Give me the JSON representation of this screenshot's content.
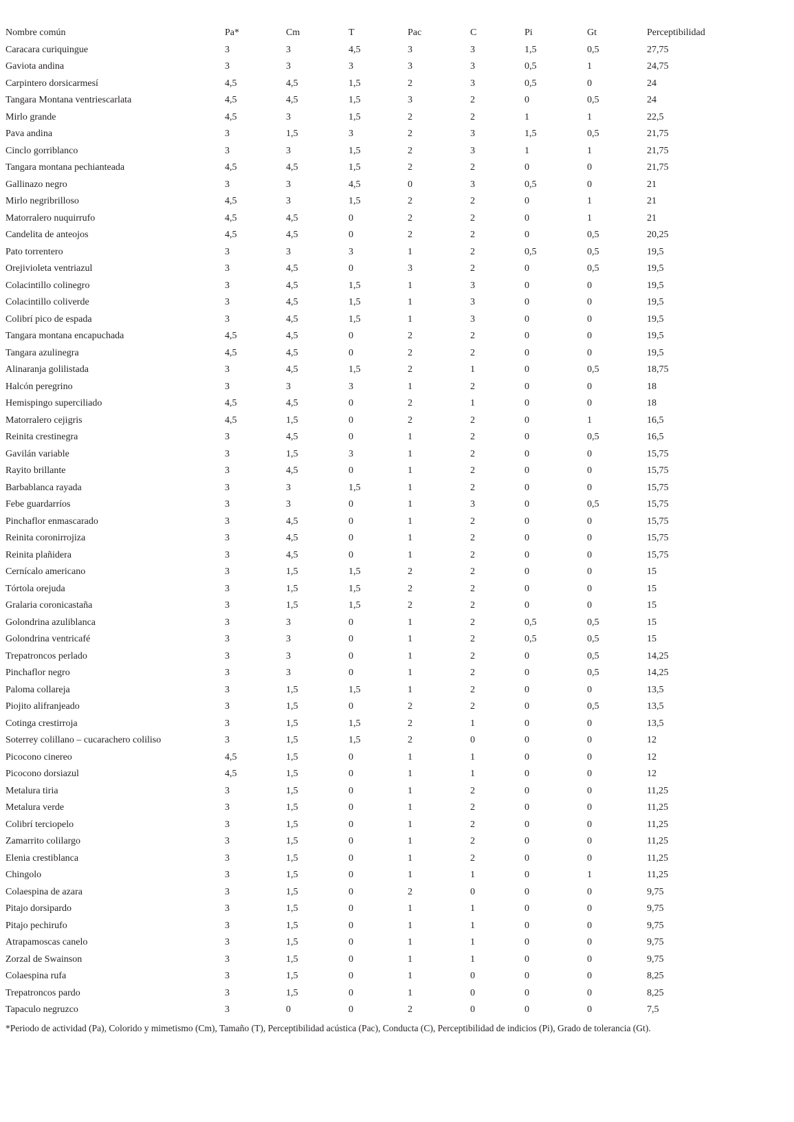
{
  "table": {
    "columns": [
      "Nombre común",
      "Pa*",
      "Cm",
      "T",
      "Pac",
      "C",
      "Pi",
      "Gt",
      "Perceptibilidad"
    ],
    "rows": [
      [
        "Caracara curiquingue",
        "3",
        "3",
        "4,5",
        "3",
        "3",
        "1,5",
        "0,5",
        "27,75"
      ],
      [
        "Gaviota andina",
        "3",
        "3",
        "3",
        "3",
        "3",
        "0,5",
        "1",
        "24,75"
      ],
      [
        "Carpintero dorsicarmesí",
        "4,5",
        "4,5",
        "1,5",
        "2",
        "3",
        "0,5",
        "0",
        "24"
      ],
      [
        "Tangara Montana ventriescarlata",
        "4,5",
        "4,5",
        "1,5",
        "3",
        "2",
        "0",
        "0,5",
        "24"
      ],
      [
        "Mirlo grande",
        "4,5",
        "3",
        "1,5",
        "2",
        "2",
        "1",
        "1",
        "22,5"
      ],
      [
        "Pava andina",
        "3",
        "1,5",
        "3",
        "2",
        "3",
        "1,5",
        "0,5",
        "21,75"
      ],
      [
        "Cinclo gorriblanco",
        "3",
        "3",
        "1,5",
        "2",
        "3",
        "1",
        "1",
        "21,75"
      ],
      [
        "Tangara montana pechianteada",
        "4,5",
        "4,5",
        "1,5",
        "2",
        "2",
        "0",
        "0",
        "21,75"
      ],
      [
        "Gallinazo negro",
        "3",
        "3",
        "4,5",
        "0",
        "3",
        "0,5",
        "0",
        "21"
      ],
      [
        "Mirlo negribrilloso",
        "4,5",
        "3",
        "1,5",
        "2",
        "2",
        "0",
        "1",
        "21"
      ],
      [
        "Matorralero nuquirrufo",
        "4,5",
        "4,5",
        "0",
        "2",
        "2",
        "0",
        "1",
        "21"
      ],
      [
        "Candelita de anteojos",
        "4,5",
        "4,5",
        "0",
        "2",
        "2",
        "0",
        "0,5",
        "20,25"
      ],
      [
        "Pato torrentero",
        "3",
        "3",
        "3",
        "1",
        "2",
        "0,5",
        "0,5",
        "19,5"
      ],
      [
        "Orejivioleta ventriazul",
        "3",
        "4,5",
        "0",
        "3",
        "2",
        "0",
        "0,5",
        "19,5"
      ],
      [
        "Colacintillo colinegro",
        "3",
        "4,5",
        "1,5",
        "1",
        "3",
        "0",
        "0",
        "19,5"
      ],
      [
        "Colacintillo coliverde",
        "3",
        "4,5",
        "1,5",
        "1",
        "3",
        "0",
        "0",
        "19,5"
      ],
      [
        "Colibrí pico de espada",
        "3",
        "4,5",
        "1,5",
        "1",
        "3",
        "0",
        "0",
        "19,5"
      ],
      [
        "Tangara montana encapuchada",
        "4,5",
        "4,5",
        "0",
        "2",
        "2",
        "0",
        "0",
        "19,5"
      ],
      [
        "Tangara azulinegra",
        "4,5",
        "4,5",
        "0",
        "2",
        "2",
        "0",
        "0",
        "19,5"
      ],
      [
        "Alinaranja golilistada",
        "3",
        "4,5",
        "1,5",
        "2",
        "1",
        "0",
        "0,5",
        "18,75"
      ],
      [
        "Halcón peregrino",
        "3",
        "3",
        "3",
        "1",
        "2",
        "0",
        "0",
        "18"
      ],
      [
        "Hemispingo superciliado",
        "4,5",
        "4,5",
        "0",
        "2",
        "1",
        "0",
        "0",
        "18"
      ],
      [
        "Matorralero cejigris",
        "4,5",
        "1,5",
        "0",
        "2",
        "2",
        "0",
        "1",
        "16,5"
      ],
      [
        "Reinita crestinegra",
        "3",
        "4,5",
        "0",
        "1",
        "2",
        "0",
        "0,5",
        "16,5"
      ],
      [
        "Gavilán variable",
        "3",
        "1,5",
        "3",
        "1",
        "2",
        "0",
        "0",
        "15,75"
      ],
      [
        "Rayito brillante",
        "3",
        "4,5",
        "0",
        "1",
        "2",
        "0",
        "0",
        "15,75"
      ],
      [
        "Barbablanca rayada",
        "3",
        "3",
        "1,5",
        "1",
        "2",
        "0",
        "0",
        "15,75"
      ],
      [
        "Febe guardarríos",
        "3",
        "3",
        "0",
        "1",
        "3",
        "0",
        "0,5",
        "15,75"
      ],
      [
        "Pinchaflor enmascarado",
        "3",
        "4,5",
        "0",
        "1",
        "2",
        "0",
        "0",
        "15,75"
      ],
      [
        "Reinita coronirrojiza",
        "3",
        "4,5",
        "0",
        "1",
        "2",
        "0",
        "0",
        "15,75"
      ],
      [
        "Reinita plañidera",
        "3",
        "4,5",
        "0",
        "1",
        "2",
        "0",
        "0",
        "15,75"
      ],
      [
        "Cernícalo americano",
        "3",
        "1,5",
        "1,5",
        "2",
        "2",
        "0",
        "0",
        "15"
      ],
      [
        "Tórtola orejuda",
        "3",
        "1,5",
        "1,5",
        "2",
        "2",
        "0",
        "0",
        "15"
      ],
      [
        "Gralaria coronicastaña",
        "3",
        "1,5",
        "1,5",
        "2",
        "2",
        "0",
        "0",
        "15"
      ],
      [
        "Golondrina azuliblanca",
        "3",
        "3",
        "0",
        "1",
        "2",
        "0,5",
        "0,5",
        "15"
      ],
      [
        "Golondrina ventricafé",
        "3",
        "3",
        "0",
        "1",
        "2",
        "0,5",
        "0,5",
        "15"
      ],
      [
        "Trepatroncos perlado",
        "3",
        "3",
        "0",
        "1",
        "2",
        "0",
        "0,5",
        "14,25"
      ],
      [
        "Pinchaflor negro",
        "3",
        "3",
        "0",
        "1",
        "2",
        "0",
        "0,5",
        "14,25"
      ],
      [
        "Paloma collareja",
        "3",
        "1,5",
        "1,5",
        "1",
        "2",
        "0",
        "0",
        "13,5"
      ],
      [
        "Piojito alifranjeado",
        "3",
        "1,5",
        "0",
        "2",
        "2",
        "0",
        "0,5",
        "13,5"
      ],
      [
        "Cotinga crestirroja",
        "3",
        "1,5",
        "1,5",
        "2",
        "1",
        "0",
        "0",
        "13,5"
      ],
      [
        "Soterrey colillano – cucarachero coliliso",
        "3",
        "1,5",
        "1,5",
        "2",
        "0",
        "0",
        "0",
        "12"
      ],
      [
        "Picocono cinereo",
        "4,5",
        "1,5",
        "0",
        "1",
        "1",
        "0",
        "0",
        "12"
      ],
      [
        "Picocono dorsiazul",
        "4,5",
        "1,5",
        "0",
        "1",
        "1",
        "0",
        "0",
        "12"
      ],
      [
        "Metalura tiria",
        "3",
        "1,5",
        "0",
        "1",
        "2",
        "0",
        "0",
        "11,25"
      ],
      [
        "Metalura verde",
        "3",
        "1,5",
        "0",
        "1",
        "2",
        "0",
        "0",
        "11,25"
      ],
      [
        "Colibrí terciopelo",
        "3",
        "1,5",
        "0",
        "1",
        "2",
        "0",
        "0",
        "11,25"
      ],
      [
        "Zamarrito colilargo",
        "3",
        "1,5",
        "0",
        "1",
        "2",
        "0",
        "0",
        "11,25"
      ],
      [
        "Elenia crestiblanca",
        "3",
        "1,5",
        "0",
        "1",
        "2",
        "0",
        "0",
        "11,25"
      ],
      [
        "Chingolo",
        "3",
        "1,5",
        "0",
        "1",
        "1",
        "0",
        "1",
        "11,25"
      ],
      [
        "Colaespina de azara",
        "3",
        "1,5",
        "0",
        "2",
        "0",
        "0",
        "0",
        "9,75"
      ],
      [
        "Pitajo dorsipardo",
        "3",
        "1,5",
        "0",
        "1",
        "1",
        "0",
        "0",
        "9,75"
      ],
      [
        "Pitajo pechirufo",
        "3",
        "1,5",
        "0",
        "1",
        "1",
        "0",
        "0",
        "9,75"
      ],
      [
        "Atrapamoscas canelo",
        "3",
        "1,5",
        "0",
        "1",
        "1",
        "0",
        "0",
        "9,75"
      ],
      [
        "Zorzal de Swainson",
        "3",
        "1,5",
        "0",
        "1",
        "1",
        "0",
        "0",
        "9,75"
      ],
      [
        "Colaespina rufa",
        "3",
        "1,5",
        "0",
        "1",
        "0",
        "0",
        "0",
        "8,25"
      ],
      [
        "Trepatroncos pardo",
        "3",
        "1,5",
        "0",
        "1",
        "0",
        "0",
        "0",
        "8,25"
      ],
      [
        "Tapaculo negruzco",
        "3",
        "0",
        "0",
        "2",
        "0",
        "0",
        "0",
        "7,5"
      ]
    ],
    "footnote": "*Periodo de actividad (Pa), Colorido y mimetismo (Cm), Tamaño (T), Perceptibilidad acústica (Pac), Conducta (C), Perceptibilidad de indicios (Pi), Grado de tolerancia (Gt)."
  }
}
